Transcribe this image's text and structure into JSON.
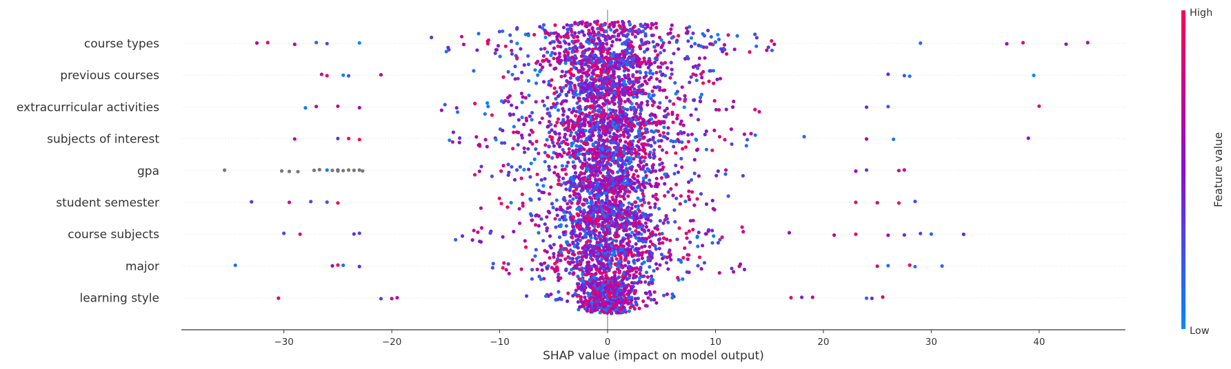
{
  "chart_data": {
    "type": "scatter",
    "subtype": "shap-beeswarm",
    "title": "",
    "xlabel": "SHAP value (impact on model output)",
    "ylabel": "",
    "xlim": [
      -39.5,
      48
    ],
    "xticks": [
      -30,
      -20,
      -10,
      0,
      10,
      20,
      30,
      40
    ],
    "xtick_labels": [
      "−30",
      "−20",
      "−10",
      "0",
      "10",
      "20",
      "30",
      "40"
    ],
    "grid": "horizontal dotted per feature row",
    "features": [
      {
        "name": "course types",
        "min": -32.5,
        "max": 44.5,
        "width": 4.7,
        "spread": 5.6,
        "outliers": [
          -32.5,
          -31.5,
          -29,
          -27,
          -26,
          -23,
          29,
          37,
          38.5,
          42.5,
          44.5
        ],
        "nan": []
      },
      {
        "name": "previous courses",
        "min": -26.5,
        "max": 39.5,
        "width": 3.2,
        "spread": 5.2,
        "outliers": [
          -26.5,
          -26,
          -24.5,
          -24,
          -21,
          26,
          27.5,
          28,
          39.5
        ],
        "nan": []
      },
      {
        "name": "extracurricular activities",
        "min": -28,
        "max": 40,
        "width": 3.6,
        "spread": 5.8,
        "outliers": [
          -28,
          -27,
          -25,
          -23,
          24,
          26,
          40
        ],
        "nan": []
      },
      {
        "name": "subjects of interest",
        "min": -29,
        "max": 39,
        "width": 4.2,
        "spread": 5.2,
        "outliers": [
          -29,
          -25,
          -24,
          -23,
          24,
          26.5,
          39
        ],
        "nan": []
      },
      {
        "name": "gpa",
        "min": -30,
        "max": 27.5,
        "width": 3.0,
        "spread": 5.8,
        "outliers": [
          -26,
          -25,
          23,
          24,
          27,
          27.5
        ],
        "nan": [
          -35.5,
          -30.2,
          -29.5,
          -28.7,
          -27.2,
          -26.7,
          -25.5,
          -25,
          -24.5,
          -24,
          -23.5,
          -23,
          -22.7
        ]
      },
      {
        "name": "student semester",
        "min": -33,
        "max": 29,
        "width": 3.0,
        "spread": 6.2,
        "outliers": [
          -33,
          -29.5,
          -27.5,
          -26,
          -25,
          23,
          25,
          27,
          28.5
        ],
        "nan": []
      },
      {
        "name": "course subjects",
        "min": -30,
        "max": 33,
        "width": 3.6,
        "spread": 5.8,
        "outliers": [
          -30,
          -28.5,
          -23.5,
          -23,
          21,
          23,
          26,
          27.5,
          29,
          30,
          33
        ],
        "nan": []
      },
      {
        "name": "major",
        "min": -34.5,
        "max": 31,
        "width": 3.4,
        "spread": 5.3,
        "outliers": [
          -34.5,
          -25.5,
          -25,
          -24.5,
          -23,
          25,
          26,
          28,
          28.5,
          31
        ],
        "nan": []
      },
      {
        "name": "learning style",
        "min": -30.5,
        "max": 25.5,
        "width": 1.6,
        "spread": 4.0,
        "outliers": [
          -30.5,
          -21,
          -20,
          -19.5,
          17,
          18,
          19,
          24,
          24.5,
          25.5
        ],
        "nan": []
      }
    ],
    "colorbar": {
      "label": "Feature value",
      "high_label": "High",
      "low_label": "Low",
      "high_color": "#ff0052",
      "mid_color": "#8a0fcf",
      "low_color": "#008bfb",
      "nan_color": "#777777"
    },
    "zero_line_color": "#999999",
    "label_color": "#333333"
  }
}
